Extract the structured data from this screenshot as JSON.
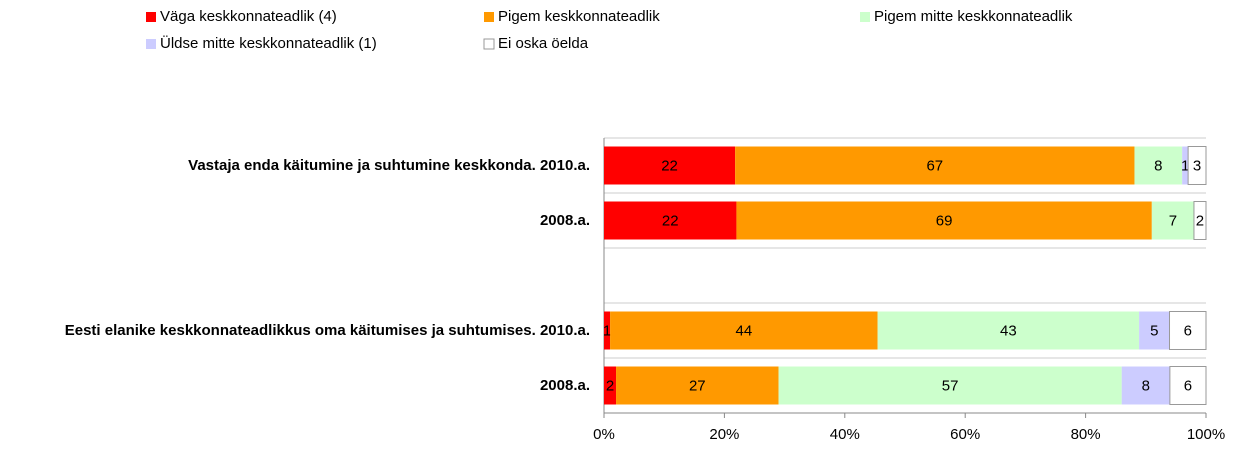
{
  "chart_data": {
    "type": "stacked_bar_horizontal_percent",
    "categories": [
      "Vastaja enda käitumine ja suhtumine keskkonda. 2010.a.",
      "2008.a.",
      null,
      "Eesti elanike keskkonnateadlikkus oma käitumises ja suhtumises. 2010.a.",
      "2008.a."
    ],
    "series": [
      {
        "name": "Väga keskkonnateadlik (4)",
        "color": "#ff0000",
        "values": [
          22,
          22,
          null,
          1,
          2
        ]
      },
      {
        "name": "Pigem keskkonnateadlik",
        "color": "#ff9900",
        "values": [
          67,
          69,
          null,
          44,
          27
        ]
      },
      {
        "name": "Pigem mitte keskkonnateadlik",
        "color": "#ccffcc",
        "values": [
          8,
          7,
          null,
          43,
          57
        ]
      },
      {
        "name": "Üldse mitte keskkonnateadlik (1)",
        "color": "#ccccff",
        "values": [
          1,
          0,
          null,
          5,
          8
        ]
      },
      {
        "name": "Ei oska öelda",
        "color": "#ffffff",
        "values": [
          3,
          2,
          null,
          6,
          6
        ]
      }
    ],
    "xlim": [
      0,
      100
    ],
    "xticks": [
      {
        "value": 0,
        "label": "0%"
      },
      {
        "value": 20,
        "label": "20%"
      },
      {
        "value": 40,
        "label": "40%"
      },
      {
        "value": 60,
        "label": "60%"
      },
      {
        "value": 80,
        "label": "80%"
      },
      {
        "value": 100,
        "label": "100%"
      }
    ],
    "legend": "top"
  }
}
